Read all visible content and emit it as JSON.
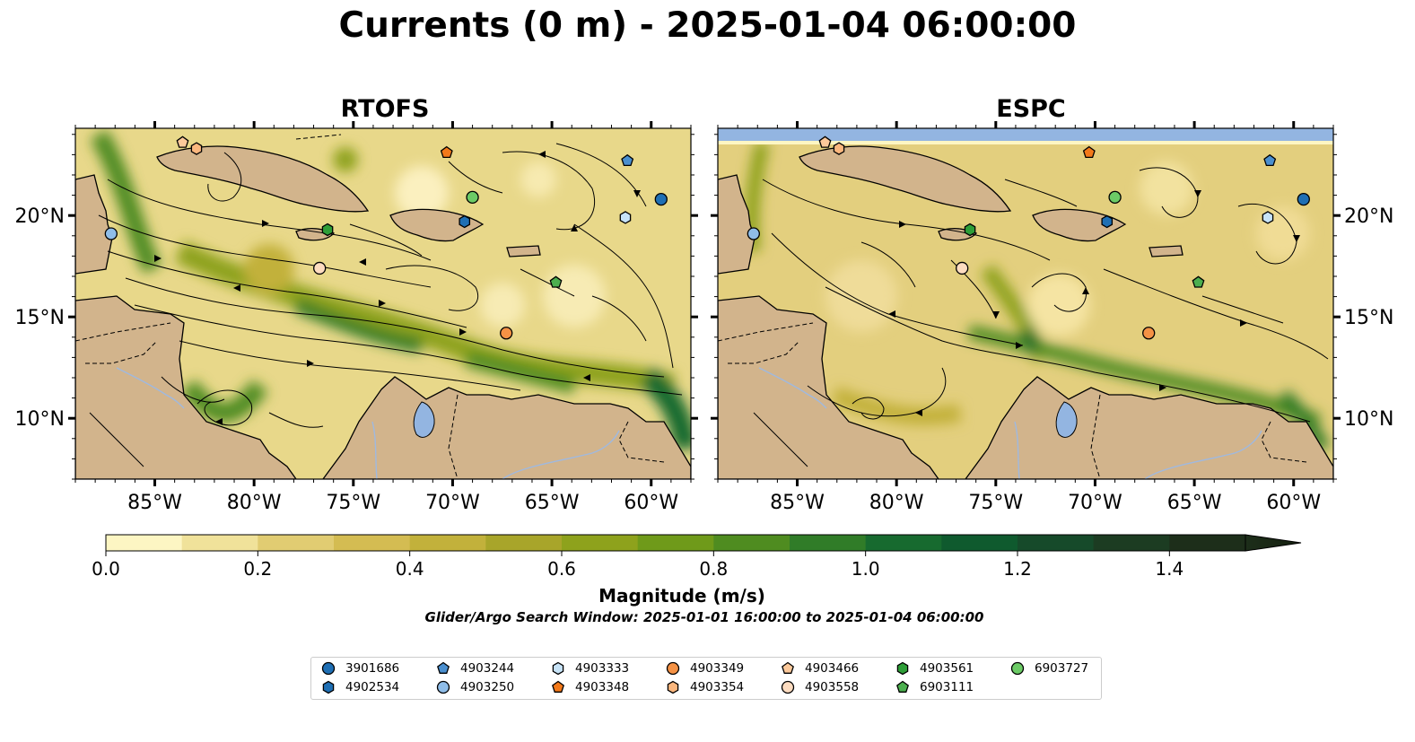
{
  "title": "Currents (0 m) - 2025-01-04 06:00:00",
  "panels": [
    {
      "title": "RTOFS"
    },
    {
      "title": "ESPC"
    }
  ],
  "axes": {
    "lon_labels": [
      "85°W",
      "80°W",
      "75°W",
      "70°W",
      "65°W",
      "60°W"
    ],
    "lat_labels": [
      "20°N",
      "15°N",
      "10°N"
    ],
    "lon_values": [
      -85,
      -80,
      -75,
      -70,
      -65,
      -60
    ],
    "lat_values": [
      20,
      15,
      10
    ],
    "lon_range": [
      -89,
      -58
    ],
    "lat_range": [
      7,
      24.3
    ]
  },
  "colorbar": {
    "label": "Magnitude (m/s)",
    "tick_labels": [
      "0.0",
      "0.2",
      "0.4",
      "0.6",
      "0.8",
      "1.0",
      "1.2",
      "1.4"
    ],
    "range": [
      0,
      1.5
    ],
    "extend": "max",
    "colors": [
      "#fdf6c3",
      "#f0e29a",
      "#e1cc72",
      "#d4bc52",
      "#c2b13b",
      "#a8a52a",
      "#8ea21c",
      "#6f9a1a",
      "#4f8c20",
      "#307c28",
      "#176a2f",
      "#0f5a2e",
      "#164a2a",
      "#1c3c22",
      "#1d2e1a"
    ]
  },
  "colors": {
    "land": "#d2b48c",
    "ocean_missing": "#93b5e1",
    "lake": "#93b5e1",
    "river": "#9fb9e0"
  },
  "search_window": "Glider/Argo Search Window: 2025-01-01 16:00:00 to 2025-01-04 06:00:00",
  "floats": [
    {
      "id": "3901686",
      "marker": "circle",
      "color": "#1f6fb4",
      "lon": -59.5,
      "lat": 20.8
    },
    {
      "id": "4902534",
      "marker": "hexagon",
      "color": "#1f6fb4",
      "lon": -69.4,
      "lat": 19.7
    },
    {
      "id": "4903244",
      "marker": "pentagon",
      "color": "#4a8fcf",
      "lon": -61.2,
      "lat": 22.7
    },
    {
      "id": "4903250",
      "marker": "circle",
      "color": "#8fbde8",
      "lon": -87.2,
      "lat": 19.1
    },
    {
      "id": "4903333",
      "marker": "hexagon",
      "color": "#c7e3f7",
      "lon": -61.3,
      "lat": 19.9
    },
    {
      "id": "4903348",
      "marker": "pentagon",
      "color": "#f3791a",
      "lon": -70.3,
      "lat": 23.1
    },
    {
      "id": "4903349",
      "marker": "circle",
      "color": "#f59245",
      "lon": -67.3,
      "lat": 14.2
    },
    {
      "id": "4903354",
      "marker": "hexagon",
      "color": "#fbb77e",
      "lon": -82.9,
      "lat": 23.3
    },
    {
      "id": "4903466",
      "marker": "pentagon",
      "color": "#fcc99b",
      "lon": -83.6,
      "lat": 23.6
    },
    {
      "id": "4903558",
      "marker": "circle",
      "color": "#fddcc0",
      "lon": -76.7,
      "lat": 17.4
    },
    {
      "id": "4903561",
      "marker": "hexagon",
      "color": "#2e9e38",
      "lon": -76.3,
      "lat": 19.3
    },
    {
      "id": "6903111",
      "marker": "pentagon",
      "color": "#4caf4f",
      "lon": -64.8,
      "lat": 16.7
    },
    {
      "id": "6903727",
      "marker": "circle",
      "color": "#6ccb66",
      "lon": -69.0,
      "lat": 20.9
    }
  ]
}
